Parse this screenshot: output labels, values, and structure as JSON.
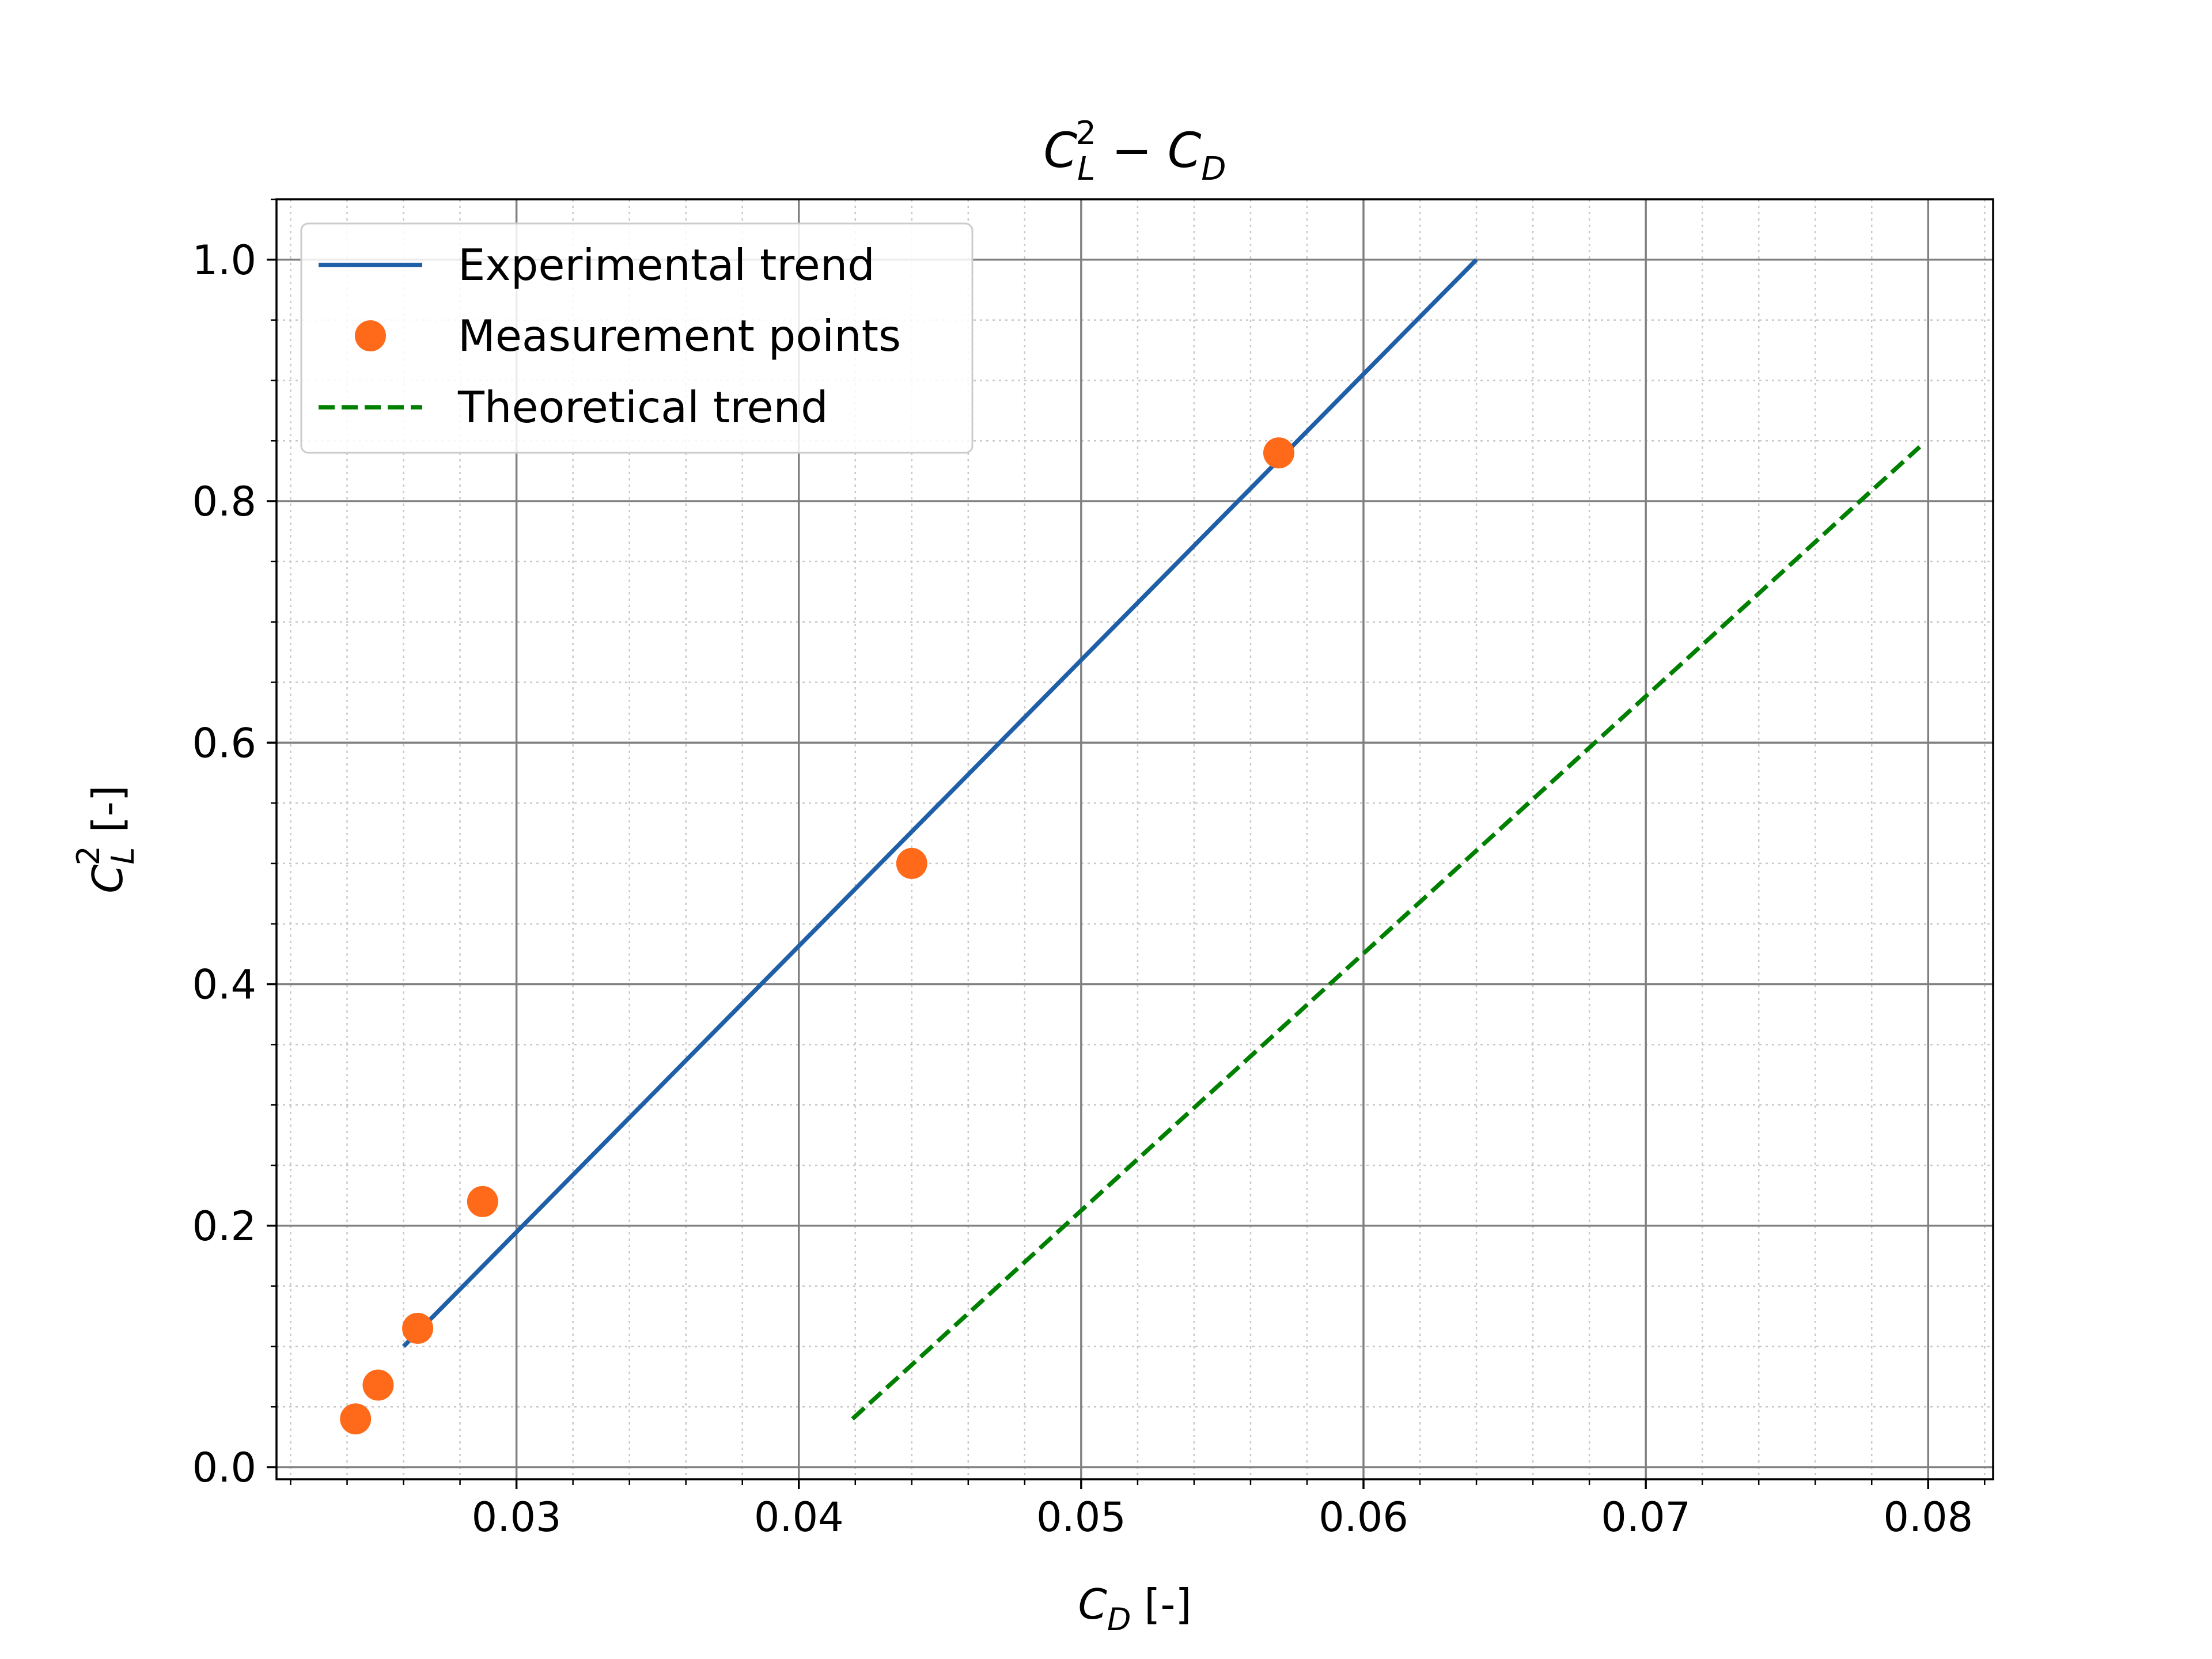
{
  "chart_data": {
    "type": "line",
    "title": {
      "base_left": "C",
      "sub_left": "L",
      "sup_left": "2",
      "operator": " − ",
      "base_right": "C",
      "sub_right": "D"
    },
    "xlabel": {
      "base": "C",
      "sub": "D",
      "suffix": " [-]"
    },
    "ylabel": {
      "base": "C",
      "sub": "L",
      "sup": "2",
      "suffix": " [-]"
    },
    "xlim": [
      0.0215,
      0.0823
    ],
    "ylim": [
      -0.01,
      1.05
    ],
    "x_ticks": [
      0.03,
      0.04,
      0.05,
      0.06,
      0.07,
      0.08
    ],
    "x_tick_labels": [
      "0.03",
      "0.04",
      "0.05",
      "0.06",
      "0.07",
      "0.08"
    ],
    "y_ticks": [
      0.0,
      0.2,
      0.4,
      0.6,
      0.8,
      1.0
    ],
    "y_tick_labels": [
      "0.0",
      "0.2",
      "0.4",
      "0.6",
      "0.8",
      "1.0"
    ],
    "x_minor_step": 0.002,
    "y_minor_step": 0.05,
    "grid": {
      "major": true,
      "minor": true
    },
    "legend_position": "top-left",
    "series": [
      {
        "name": "Experimental trend",
        "kind": "line",
        "style": "solid",
        "color": "#1f5fa8",
        "x": [
          0.026,
          0.064
        ],
        "y": [
          0.1,
          1.0
        ]
      },
      {
        "name": "Measurement points",
        "kind": "scatter",
        "color": "#ff6a1a",
        "x": [
          0.0243,
          0.0251,
          0.0265,
          0.0288,
          0.044,
          0.057
        ],
        "y": [
          0.04,
          0.068,
          0.115,
          0.22,
          0.5,
          0.84
        ]
      },
      {
        "name": "Theoretical trend",
        "kind": "line",
        "style": "dashed",
        "color": "#008000",
        "x": [
          0.0419,
          0.0797
        ],
        "y": [
          0.04,
          0.845
        ]
      }
    ]
  }
}
